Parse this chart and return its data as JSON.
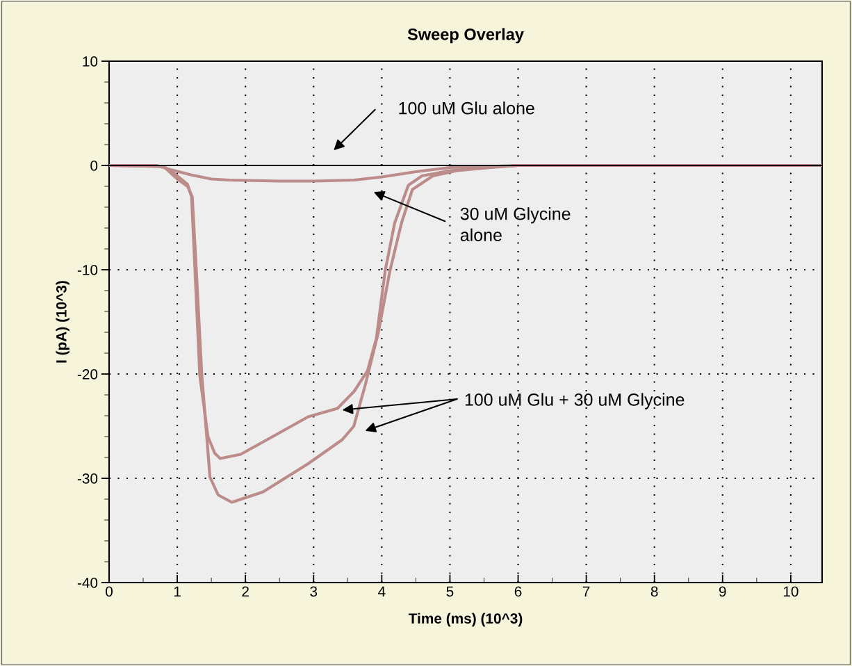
{
  "chart_data": {
    "type": "line",
    "title": "Sweep Overlay",
    "xlabel": "Time (ms) (10^3)",
    "ylabel": "I (pA) (10^3)",
    "xlim": [
      0,
      10.46
    ],
    "ylim": [
      -40,
      10
    ],
    "xticks": [
      0,
      1,
      2,
      3,
      4,
      5,
      6,
      7,
      8,
      9,
      10
    ],
    "yticks": [
      -40,
      -30,
      -20,
      -10,
      0,
      10
    ],
    "grid": true,
    "legend": false,
    "marker": "none",
    "line_style": "solid",
    "ref_lines": [
      {
        "axis": "y",
        "value": 0,
        "color": "#000000",
        "line_style": "solid"
      }
    ],
    "series": [
      {
        "color": "#bc8c8a",
        "x": [
          0,
          0.7,
          0.9,
          1.2,
          1.5,
          1.76,
          2.5,
          3.0,
          3.6,
          4.0,
          4.5,
          5.0,
          5.5,
          6.0,
          10.46
        ],
        "values": [
          0,
          0,
          -0.4,
          -0.9,
          -1.3,
          -1.4,
          -1.5,
          -1.5,
          -1.4,
          -1.1,
          -0.6,
          -0.2,
          -0.1,
          0,
          0
        ]
      },
      {
        "color": "#bc8c8a",
        "x": [
          0,
          0.8,
          1.0,
          1.15,
          1.21,
          1.26,
          1.33,
          1.45,
          1.55,
          1.63,
          1.93,
          2.4,
          2.92,
          3.35,
          3.59,
          3.79,
          3.92,
          4.05,
          4.19,
          4.39,
          4.59,
          5.0,
          5.5,
          6.0,
          10.46
        ],
        "values": [
          0,
          -0.1,
          -1.0,
          -1.8,
          -3.0,
          -10.1,
          -20.1,
          -26.0,
          -27.6,
          -28.1,
          -27.7,
          -26.0,
          -24.1,
          -23.3,
          -21.7,
          -19.7,
          -16.6,
          -10.1,
          -5.5,
          -1.9,
          -1.0,
          -0.5,
          -0.2,
          0,
          0
        ]
      },
      {
        "color": "#bc8c8a",
        "x": [
          0,
          0.8,
          1.0,
          1.15,
          1.22,
          1.28,
          1.36,
          1.48,
          1.6,
          1.8,
          2.26,
          2.92,
          3.42,
          3.59,
          3.76,
          3.95,
          4.12,
          4.29,
          4.45,
          4.75,
          5.1,
          5.6,
          6.0,
          10.46
        ],
        "values": [
          0,
          -0.1,
          -1.3,
          -2.0,
          -3.0,
          -10.1,
          -20.1,
          -29.9,
          -31.6,
          -32.3,
          -31.3,
          -28.6,
          -26.3,
          -25.0,
          -21.0,
          -16.0,
          -10.1,
          -5.5,
          -2.3,
          -1.0,
          -0.5,
          -0.2,
          0,
          0
        ]
      }
    ],
    "annotations": [
      "100 uM Glu alone",
      "30 uM Glycine\nalone",
      "100 uM Glu + 30 uM Glycine"
    ]
  }
}
